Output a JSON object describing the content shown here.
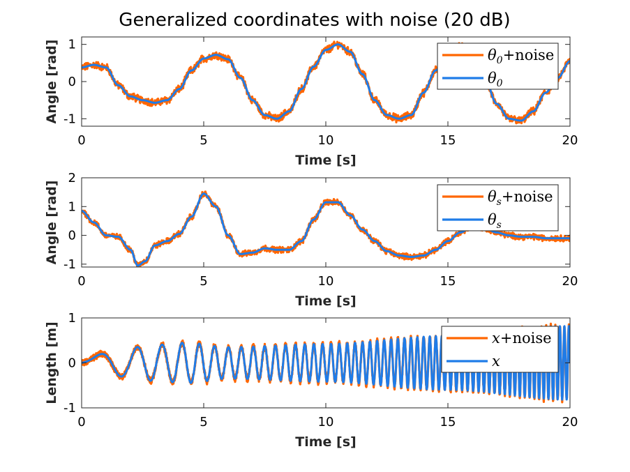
{
  "chart_data": [
    {
      "type": "line",
      "title": "Generalized coordinates with noise (20 dB)",
      "xlabel": "Time [s]",
      "ylabel": "Angle [rad]",
      "xlim": [
        0,
        20
      ],
      "ylim": [
        -1.2,
        1.2
      ],
      "xticks": [
        "0",
        "5",
        "10",
        "15",
        "20"
      ],
      "yticks": [
        "-1",
        "0",
        "1"
      ],
      "ytick_values": [
        -1,
        0,
        1
      ],
      "legend_position": "top-right",
      "legend": [
        {
          "symbol": "θ",
          "sub": "0",
          "suffix": "+noise",
          "color": "#FF6600"
        },
        {
          "symbol": "θ",
          "sub": "0",
          "suffix": "",
          "color": "#1F7CE8"
        }
      ],
      "x": [
        0,
        0.5,
        1,
        1.5,
        2,
        2.5,
        3,
        3.5,
        4,
        4.5,
        5,
        5.5,
        6,
        6.5,
        7,
        7.5,
        8,
        8.5,
        9,
        9.5,
        10,
        10.5,
        11,
        11.5,
        12,
        12.5,
        13,
        13.5,
        14,
        14.5,
        15,
        15.5,
        16,
        16.5,
        17,
        17.5,
        18,
        18.5,
        19,
        19.5,
        20
      ],
      "series": [
        {
          "name": "θ0+noise",
          "color": "#FF6600",
          "noise_amplitude": 0.09,
          "values": [
            0.38,
            0.45,
            0.38,
            -0.1,
            -0.4,
            -0.5,
            -0.57,
            -0.5,
            -0.2,
            0.3,
            0.62,
            0.72,
            0.6,
            0.1,
            -0.5,
            -0.9,
            -1.0,
            -0.8,
            -0.2,
            0.4,
            0.85,
            1.0,
            0.8,
            0.2,
            -0.5,
            -0.9,
            -1.0,
            -0.9,
            -0.3,
            0.3,
            0.82,
            0.95,
            0.7,
            0.1,
            -0.6,
            -1.0,
            -1.05,
            -0.8,
            -0.3,
            0.1,
            0.55
          ]
        },
        {
          "name": "θ0",
          "color": "#1F7CE8",
          "values": [
            0.38,
            0.45,
            0.38,
            -0.1,
            -0.4,
            -0.5,
            -0.57,
            -0.5,
            -0.2,
            0.3,
            0.62,
            0.72,
            0.6,
            0.1,
            -0.5,
            -0.9,
            -1.0,
            -0.8,
            -0.2,
            0.4,
            0.85,
            1.0,
            0.8,
            0.2,
            -0.5,
            -0.9,
            -1.0,
            -0.9,
            -0.3,
            0.3,
            0.82,
            0.95,
            0.7,
            0.1,
            -0.6,
            -1.0,
            -1.05,
            -0.8,
            -0.3,
            0.1,
            0.55
          ]
        }
      ]
    },
    {
      "type": "line",
      "title": "",
      "xlabel": "Time [s]",
      "ylabel": "Angle [rad]",
      "xlim": [
        0,
        20
      ],
      "ylim": [
        -1.1,
        2
      ],
      "xticks": [
        "0",
        "5",
        "10",
        "15",
        "20"
      ],
      "yticks": [
        "-1",
        "0",
        "1",
        "2"
      ],
      "ytick_values": [
        -1,
        0,
        1,
        2
      ],
      "legend_position": "top-right",
      "legend": [
        {
          "symbol": "θ",
          "sub": "s",
          "suffix": "+noise",
          "color": "#FF6600"
        },
        {
          "symbol": "θ",
          "sub": "s",
          "suffix": "",
          "color": "#1F7CE8"
        }
      ],
      "x": [
        0,
        0.5,
        1,
        1.5,
        2,
        2.3,
        2.6,
        3,
        3.5,
        4,
        4.5,
        5,
        5.5,
        6,
        6.5,
        7,
        7.5,
        8,
        8.5,
        9,
        9.5,
        10,
        10.5,
        11,
        11.5,
        12,
        12.5,
        13,
        13.5,
        14,
        14.5,
        15,
        15.5,
        16,
        16.5,
        17,
        17.5,
        18,
        18.5,
        19,
        19.5,
        20
      ],
      "series": [
        {
          "name": "θs+noise",
          "color": "#FF6600",
          "noise_amplitude": 0.09,
          "values": [
            0.85,
            0.45,
            0.0,
            -0.05,
            -0.5,
            -1.05,
            -0.9,
            -0.35,
            -0.2,
            0.05,
            0.65,
            1.45,
            1.0,
            0.0,
            -0.65,
            -0.6,
            -0.45,
            -0.5,
            -0.5,
            -0.2,
            0.55,
            1.15,
            1.15,
            0.7,
            0.2,
            -0.2,
            -0.55,
            -0.7,
            -0.75,
            -0.7,
            -0.5,
            -0.2,
            0.1,
            0.3,
            0.25,
            0.1,
            0.0,
            -0.05,
            -0.05,
            -0.1,
            -0.1,
            -0.1
          ]
        },
        {
          "name": "θs",
          "color": "#1F7CE8",
          "values": [
            0.85,
            0.45,
            0.0,
            -0.05,
            -0.5,
            -1.05,
            -0.9,
            -0.35,
            -0.2,
            0.05,
            0.65,
            1.45,
            1.0,
            0.0,
            -0.65,
            -0.6,
            -0.45,
            -0.5,
            -0.5,
            -0.2,
            0.55,
            1.15,
            1.15,
            0.7,
            0.2,
            -0.2,
            -0.55,
            -0.7,
            -0.75,
            -0.7,
            -0.5,
            -0.2,
            0.1,
            0.3,
            0.25,
            0.1,
            0.0,
            -0.05,
            -0.05,
            -0.1,
            -0.1,
            -0.1
          ]
        }
      ]
    },
    {
      "type": "line",
      "title": "",
      "xlabel": "Time [s]",
      "ylabel": "Length [m]",
      "xlim": [
        0,
        20
      ],
      "ylim": [
        -1,
        1
      ],
      "xticks": [
        "0",
        "5",
        "10",
        "15",
        "20"
      ],
      "yticks": [
        "-1",
        "0",
        "1"
      ],
      "ytick_values": [
        -1,
        0,
        1
      ],
      "legend_position": "top-right",
      "legend": [
        {
          "symbol": "x",
          "sub": "",
          "suffix": "+noise",
          "color": "#FF6600"
        },
        {
          "symbol": "x",
          "sub": "",
          "suffix": "",
          "color": "#1F7CE8"
        }
      ],
      "signal_form": "chirp",
      "chirp_frequency_start_hz": 0.25,
      "chirp_frequency_end_hz": 5.5,
      "chirp_envelope_time": [
        0,
        1.5,
        3,
        4.3,
        6,
        10,
        15,
        20
      ],
      "chirp_envelope_amplitude": [
        0.08,
        0.3,
        0.4,
        0.45,
        0.35,
        0.42,
        0.6,
        0.82
      ],
      "series": [
        {
          "name": "x+noise",
          "color": "#FF6600",
          "noise_amplitude": 0.06
        },
        {
          "name": "x",
          "color": "#1F7CE8"
        }
      ]
    }
  ]
}
